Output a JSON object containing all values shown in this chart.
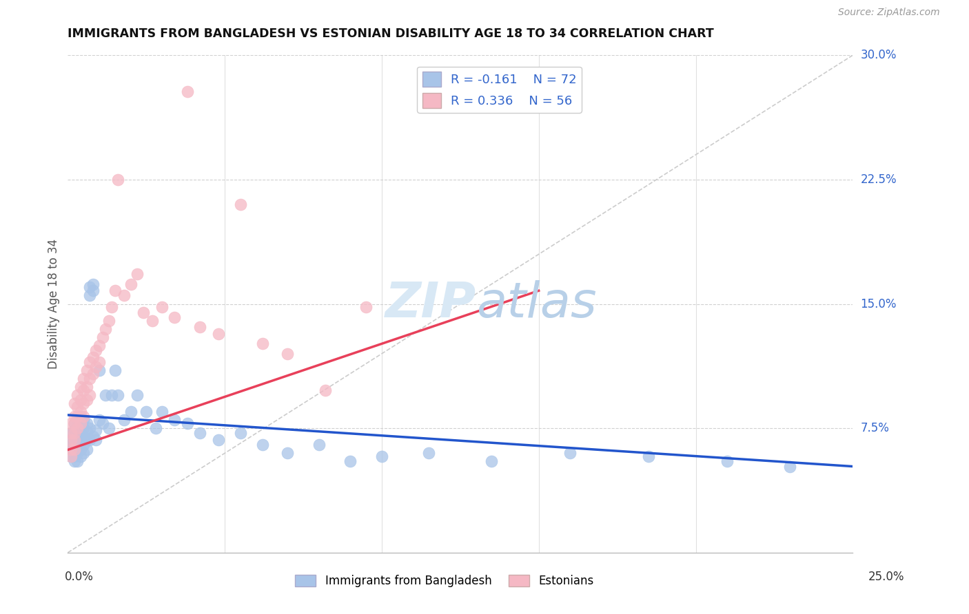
{
  "title": "IMMIGRANTS FROM BANGLADESH VS ESTONIAN DISABILITY AGE 18 TO 34 CORRELATION CHART",
  "source": "Source: ZipAtlas.com",
  "xlabel_bottom_left": "0.0%",
  "xlabel_bottom_right": "25.0%",
  "ylabel_label": "Disability Age 18 to 34",
  "xaxis_max": 0.25,
  "yaxis_max": 0.3,
  "legend_blue_r": "R = -0.161",
  "legend_blue_n": "N = 72",
  "legend_pink_r": "R = 0.336",
  "legend_pink_n": "N = 56",
  "legend_blue_label": "Immigrants from Bangladesh",
  "legend_pink_label": "Estonians",
  "blue_color": "#a8c4e8",
  "pink_color": "#f5b8c4",
  "blue_line_color": "#2255cc",
  "pink_line_color": "#e8405a",
  "ref_line_color": "#cccccc",
  "watermark_color": "#d8e8f5",
  "axis_label_color": "#3366cc",
  "title_color": "#111111",
  "blue_scatter_x": [
    0.001,
    0.001,
    0.001,
    0.001,
    0.001,
    0.002,
    0.002,
    0.002,
    0.002,
    0.002,
    0.002,
    0.002,
    0.003,
    0.003,
    0.003,
    0.003,
    0.003,
    0.003,
    0.004,
    0.004,
    0.004,
    0.004,
    0.004,
    0.004,
    0.005,
    0.005,
    0.005,
    0.005,
    0.005,
    0.006,
    0.006,
    0.006,
    0.006,
    0.007,
    0.007,
    0.007,
    0.007,
    0.008,
    0.008,
    0.008,
    0.009,
    0.009,
    0.01,
    0.01,
    0.011,
    0.012,
    0.013,
    0.014,
    0.015,
    0.016,
    0.018,
    0.02,
    0.022,
    0.025,
    0.028,
    0.03,
    0.034,
    0.038,
    0.042,
    0.048,
    0.055,
    0.062,
    0.07,
    0.08,
    0.09,
    0.1,
    0.115,
    0.135,
    0.16,
    0.185,
    0.21,
    0.23
  ],
  "blue_scatter_y": [
    0.072,
    0.068,
    0.065,
    0.062,
    0.058,
    0.078,
    0.074,
    0.07,
    0.066,
    0.062,
    0.058,
    0.055,
    0.08,
    0.075,
    0.07,
    0.065,
    0.06,
    0.055,
    0.082,
    0.078,
    0.072,
    0.068,
    0.062,
    0.058,
    0.08,
    0.075,
    0.07,
    0.065,
    0.06,
    0.078,
    0.073,
    0.068,
    0.062,
    0.155,
    0.16,
    0.075,
    0.068,
    0.162,
    0.158,
    0.07,
    0.074,
    0.068,
    0.11,
    0.08,
    0.078,
    0.095,
    0.075,
    0.095,
    0.11,
    0.095,
    0.08,
    0.085,
    0.095,
    0.085,
    0.075,
    0.085,
    0.08,
    0.078,
    0.072,
    0.068,
    0.072,
    0.065,
    0.06,
    0.065,
    0.055,
    0.058,
    0.06,
    0.055,
    0.06,
    0.058,
    0.055,
    0.052
  ],
  "pink_scatter_x": [
    0.001,
    0.001,
    0.001,
    0.001,
    0.001,
    0.002,
    0.002,
    0.002,
    0.002,
    0.002,
    0.002,
    0.003,
    0.003,
    0.003,
    0.003,
    0.004,
    0.004,
    0.004,
    0.004,
    0.005,
    0.005,
    0.005,
    0.005,
    0.006,
    0.006,
    0.006,
    0.007,
    0.007,
    0.007,
    0.008,
    0.008,
    0.009,
    0.009,
    0.01,
    0.01,
    0.011,
    0.012,
    0.013,
    0.014,
    0.015,
    0.016,
    0.018,
    0.02,
    0.022,
    0.024,
    0.027,
    0.03,
    0.034,
    0.038,
    0.042,
    0.048,
    0.055,
    0.062,
    0.07,
    0.082,
    0.095
  ],
  "pink_scatter_y": [
    0.078,
    0.072,
    0.068,
    0.062,
    0.058,
    0.09,
    0.082,
    0.078,
    0.072,
    0.068,
    0.062,
    0.095,
    0.088,
    0.082,
    0.075,
    0.1,
    0.092,
    0.085,
    0.078,
    0.105,
    0.098,
    0.09,
    0.082,
    0.11,
    0.1,
    0.092,
    0.115,
    0.105,
    0.095,
    0.118,
    0.108,
    0.122,
    0.112,
    0.125,
    0.115,
    0.13,
    0.135,
    0.14,
    0.148,
    0.158,
    0.225,
    0.155,
    0.162,
    0.168,
    0.145,
    0.14,
    0.148,
    0.142,
    0.278,
    0.136,
    0.132,
    0.21,
    0.126,
    0.12,
    0.098,
    0.148
  ]
}
